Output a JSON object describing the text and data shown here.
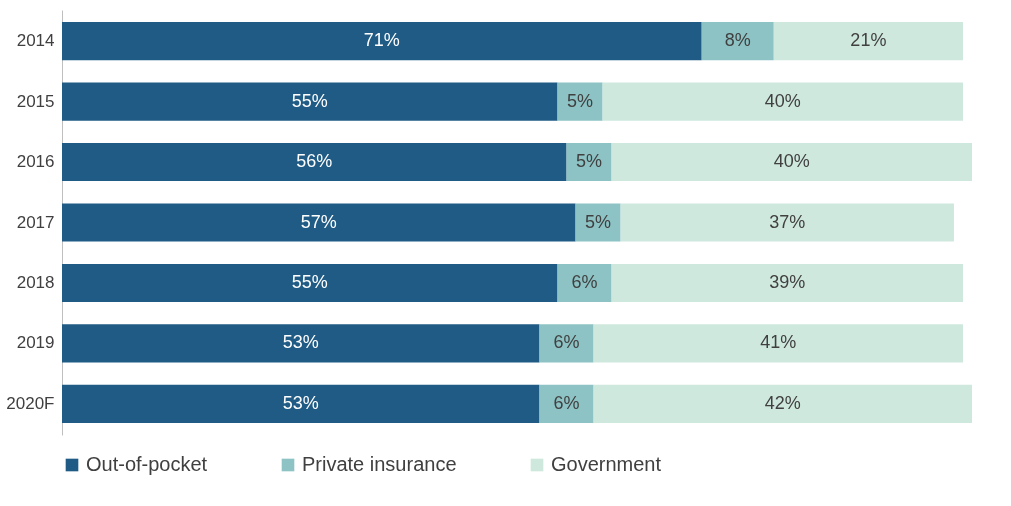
{
  "chart_data": {
    "type": "bar",
    "orientation": "horizontal",
    "stacked": true,
    "legend": "bottom",
    "grid": false,
    "categories": [
      "2014",
      "2015",
      "2016",
      "2017",
      "2018",
      "2019",
      "2020F"
    ],
    "series": [
      {
        "name": "Out-of-pocket",
        "color": "#1f5b85",
        "values": [
          71,
          55,
          56,
          57,
          55,
          53,
          53
        ],
        "value_labels": [
          "71%",
          "55%",
          "56%",
          "57%",
          "55%",
          "53%",
          "53%"
        ]
      },
      {
        "name": "Private insurance",
        "color": "#8dc3c5",
        "values": [
          8,
          5,
          5,
          5,
          6,
          6,
          6
        ],
        "value_labels": [
          "8%",
          "5%",
          "5%",
          "5%",
          "6%",
          "6%",
          "6%"
        ]
      },
      {
        "name": "Government",
        "color": "#cfe8de",
        "values": [
          21,
          40,
          40,
          37,
          39,
          41,
          42
        ],
        "value_labels": [
          "21%",
          "40%",
          "40%",
          "37%",
          "39%",
          "41%",
          "42%"
        ]
      }
    ]
  }
}
